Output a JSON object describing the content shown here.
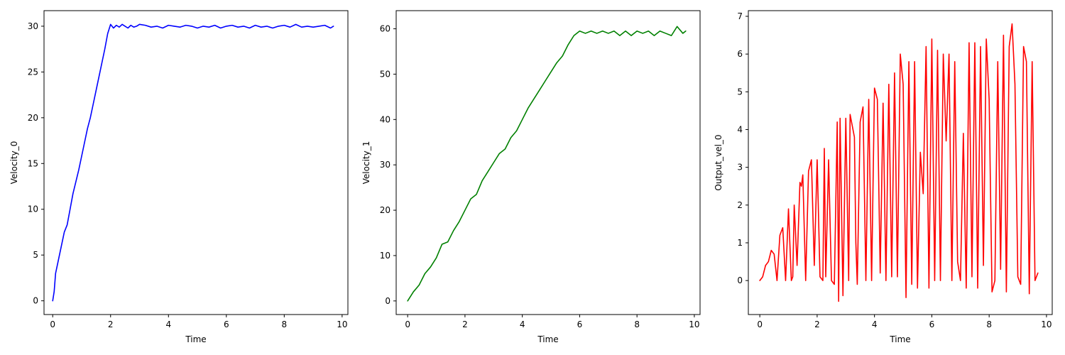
{
  "chart_data": [
    {
      "type": "line",
      "xlabel": "Time",
      "ylabel": "Velocity_0",
      "xlim": [
        -0.3,
        10.2
      ],
      "ylim": [
        -1.5,
        31.7
      ],
      "xticks": [
        0,
        2,
        4,
        6,
        8,
        10
      ],
      "yticks": [
        0,
        5,
        10,
        15,
        20,
        25,
        30
      ],
      "grid": false,
      "color": "#0000ff",
      "series": [
        {
          "x": [
            0,
            0.05,
            0.1,
            0.2,
            0.3,
            0.4,
            0.5,
            0.6,
            0.7,
            0.8,
            0.9,
            1.0,
            1.1,
            1.2,
            1.3,
            1.4,
            1.5,
            1.6,
            1.7,
            1.8,
            1.9,
            2.0,
            2.1,
            2.2,
            2.3,
            2.4,
            2.5,
            2.6,
            2.7,
            2.8,
            2.9,
            3.0,
            3.2,
            3.4,
            3.6,
            3.8,
            4.0,
            4.2,
            4.4,
            4.6,
            4.8,
            5.0,
            5.2,
            5.4,
            5.6,
            5.8,
            6.0,
            6.2,
            6.4,
            6.6,
            6.8,
            7.0,
            7.2,
            7.4,
            7.6,
            7.8,
            8.0,
            8.2,
            8.4,
            8.6,
            8.8,
            9.0,
            9.2,
            9.4,
            9.6,
            9.7
          ],
          "y": [
            0,
            1.0,
            3.0,
            4.5,
            6.0,
            7.5,
            8.3,
            10.0,
            11.7,
            13.0,
            14.3,
            15.8,
            17.3,
            18.8,
            20.0,
            21.5,
            23.0,
            24.5,
            26.0,
            27.5,
            29.2,
            30.2,
            29.8,
            30.1,
            29.9,
            30.2,
            30.0,
            29.8,
            30.1,
            29.9,
            30.0,
            30.2,
            30.1,
            29.9,
            30.0,
            29.8,
            30.1,
            30.0,
            29.9,
            30.1,
            30.0,
            29.8,
            30.0,
            29.9,
            30.1,
            29.8,
            30.0,
            30.1,
            29.9,
            30.0,
            29.8,
            30.1,
            29.9,
            30.0,
            29.8,
            30.0,
            30.1,
            29.9,
            30.2,
            29.9,
            30.0,
            29.9,
            30.0,
            30.1,
            29.8,
            30.0
          ]
        }
      ]
    },
    {
      "type": "line",
      "xlabel": "Time",
      "ylabel": "Velocity_1",
      "xlim": [
        -0.4,
        10.2
      ],
      "ylim": [
        -3,
        64
      ],
      "xticks": [
        0,
        2,
        4,
        6,
        8,
        10
      ],
      "yticks": [
        0,
        10,
        20,
        30,
        40,
        50,
        60
      ],
      "grid": false,
      "color": "#008000",
      "series": [
        {
          "x": [
            0,
            0.2,
            0.4,
            0.6,
            0.8,
            1.0,
            1.2,
            1.4,
            1.6,
            1.8,
            2.0,
            2.2,
            2.4,
            2.6,
            2.8,
            3.0,
            3.2,
            3.4,
            3.6,
            3.8,
            4.0,
            4.2,
            4.4,
            4.6,
            4.8,
            5.0,
            5.2,
            5.4,
            5.6,
            5.8,
            6.0,
            6.2,
            6.4,
            6.6,
            6.8,
            7.0,
            7.2,
            7.4,
            7.6,
            7.8,
            8.0,
            8.2,
            8.4,
            8.6,
            8.8,
            9.0,
            9.2,
            9.4,
            9.6,
            9.7
          ],
          "y": [
            0,
            2.0,
            3.5,
            6.0,
            7.5,
            9.5,
            12.5,
            13.0,
            15.5,
            17.5,
            20.0,
            22.5,
            23.5,
            26.5,
            28.5,
            30.5,
            32.5,
            33.5,
            36.0,
            37.5,
            40.0,
            42.5,
            44.5,
            46.5,
            48.5,
            50.5,
            52.5,
            54.0,
            56.5,
            58.5,
            59.5,
            59.0,
            59.5,
            59.0,
            59.5,
            59.0,
            59.5,
            58.5,
            59.5,
            58.5,
            59.5,
            59.0,
            59.5,
            58.5,
            59.5,
            59.0,
            58.5,
            60.5,
            59.0,
            59.5
          ]
        }
      ]
    },
    {
      "type": "line",
      "xlabel": "Time",
      "ylabel": "Output_vel_0",
      "xlim": [
        -0.4,
        10.2
      ],
      "ylim": [
        -0.9,
        7.15
      ],
      "xticks": [
        0,
        2,
        4,
        6,
        8,
        10
      ],
      "yticks": [
        0,
        1,
        2,
        3,
        4,
        5,
        6,
        7
      ],
      "grid": false,
      "color": "#ff0000",
      "series": [
        {
          "x": [
            0,
            0.1,
            0.2,
            0.3,
            0.4,
            0.5,
            0.6,
            0.7,
            0.8,
            0.9,
            1.0,
            1.1,
            1.15,
            1.2,
            1.3,
            1.4,
            1.45,
            1.5,
            1.6,
            1.7,
            1.8,
            1.9,
            2.0,
            2.1,
            2.2,
            2.25,
            2.3,
            2.4,
            2.5,
            2.6,
            2.7,
            2.75,
            2.8,
            2.9,
            3.0,
            3.1,
            3.15,
            3.2,
            3.3,
            3.35,
            3.4,
            3.5,
            3.6,
            3.7,
            3.8,
            3.9,
            4.0,
            4.1,
            4.2,
            4.3,
            4.4,
            4.5,
            4.6,
            4.7,
            4.8,
            4.9,
            5.0,
            5.1,
            5.2,
            5.3,
            5.4,
            5.5,
            5.6,
            5.7,
            5.8,
            5.9,
            6.0,
            6.1,
            6.2,
            6.3,
            6.4,
            6.5,
            6.6,
            6.7,
            6.8,
            6.9,
            7.0,
            7.1,
            7.2,
            7.3,
            7.4,
            7.5,
            7.6,
            7.7,
            7.8,
            7.9,
            8.0,
            8.1,
            8.2,
            8.3,
            8.4,
            8.5,
            8.6,
            8.7,
            8.8,
            8.9,
            9.0,
            9.1,
            9.2,
            9.3,
            9.4,
            9.5,
            9.6,
            9.7
          ],
          "y": [
            0,
            0.1,
            0.4,
            0.5,
            0.8,
            0.7,
            0.0,
            1.2,
            1.4,
            0.0,
            1.9,
            0.0,
            0.1,
            2.0,
            0.4,
            2.6,
            2.5,
            2.8,
            0.0,
            2.9,
            3.2,
            0.4,
            3.2,
            0.1,
            0.0,
            3.5,
            0.1,
            3.2,
            0.0,
            -0.1,
            4.2,
            -0.55,
            4.3,
            -0.4,
            4.3,
            0.0,
            4.4,
            4.2,
            3.8,
            1.0,
            -0.1,
            4.2,
            4.6,
            0.0,
            4.8,
            0.0,
            5.1,
            4.8,
            0.2,
            4.7,
            0.0,
            5.2,
            0.1,
            5.5,
            0.1,
            6.0,
            5.2,
            -0.45,
            5.8,
            -0.1,
            5.8,
            -0.2,
            3.4,
            2.3,
            6.2,
            -0.2,
            6.4,
            0.0,
            6.1,
            0.0,
            6.0,
            3.7,
            6.0,
            0.0,
            5.8,
            0.5,
            0.0,
            3.9,
            -0.2,
            6.3,
            0.1,
            6.3,
            -0.2,
            6.2,
            0.4,
            6.4,
            4.8,
            -0.3,
            0.0,
            5.8,
            0.3,
            6.5,
            -0.3,
            6.2,
            6.8,
            5.2,
            0.1,
            -0.1,
            6.2,
            5.8,
            -0.35,
            5.8,
            0.0,
            0.2
          ]
        }
      ]
    }
  ]
}
